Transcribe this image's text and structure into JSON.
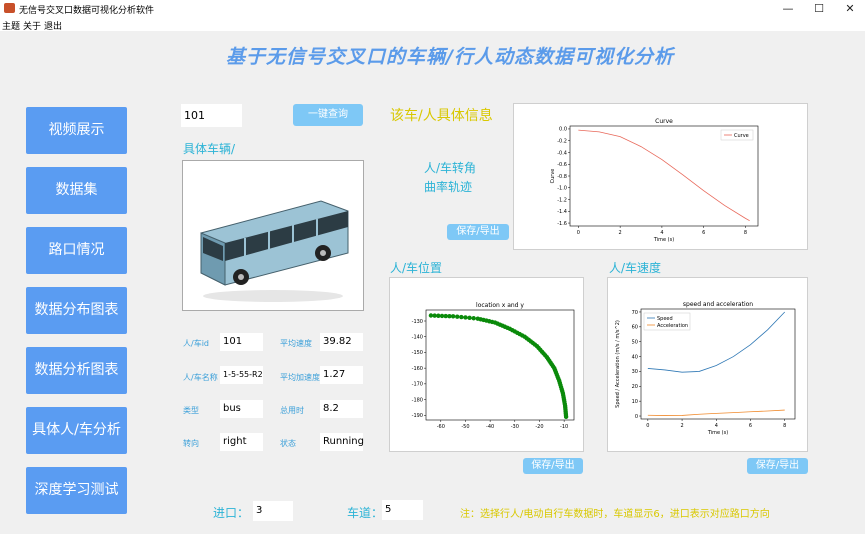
{
  "window": {
    "title": "无信号交叉口数据可视化分析软件",
    "min": "—",
    "max": "☐",
    "close": "✕"
  },
  "menu": [
    "主题",
    "关于",
    "退出"
  ],
  "header": {
    "title": "基于无信号交叉口的车辆/行人动态数据可视化分析"
  },
  "nav": [
    "视频展示",
    "数据集",
    "路口情况",
    "数据分布图表",
    "数据分析图表",
    "具体人/车分析",
    "深度学习测试"
  ],
  "search": {
    "value": "101",
    "button": "一键查询"
  },
  "vehicle": {
    "section_title": "具体车辆/",
    "fields": [
      {
        "label": "人/车id",
        "value": "101"
      },
      {
        "label": "平均速度",
        "value": "39.82"
      },
      {
        "label": "人/车名称",
        "value": "1-5-55-R2"
      },
      {
        "label": "平均加速度",
        "value": "1.27"
      },
      {
        "label": "类型",
        "value": "bus"
      },
      {
        "label": "总用时",
        "value": "8.2"
      },
      {
        "label": "转向",
        "value": "right"
      },
      {
        "label": "状态",
        "value": "Running"
      }
    ]
  },
  "info": {
    "title": "该车/人具体信息",
    "curve_label_1": "人/车转角",
    "curve_label_2": "曲率轨迹",
    "export": "保存/导出"
  },
  "position": {
    "title": "人/车位置",
    "export": "保存/导出"
  },
  "speed": {
    "title": "人/车速度",
    "export": "保存/导出"
  },
  "bottom": {
    "entry_label": "进口：",
    "entry_value": "3",
    "lane_label": "车道：",
    "lane_value": "5",
    "note": "注：选择行人/电动自行车数据时，车道显示6，进口表示对应路口方向"
  },
  "chart_data": [
    {
      "type": "line",
      "title": "Curve",
      "xlabel": "Time (s)",
      "ylabel": "Curve",
      "legend": [
        "Curve"
      ],
      "xlim": [
        -0.4,
        8.6
      ],
      "ylim": [
        -1.65,
        0.05
      ],
      "xticks": [
        0,
        2,
        4,
        6,
        8
      ],
      "yticks": [
        0.0,
        -0.2,
        -0.4,
        -0.6,
        -0.8,
        -1.0,
        -1.2,
        -1.4,
        -1.6
      ],
      "series": [
        {
          "name": "Curve",
          "color": "#e8685a",
          "x": [
            0,
            1,
            2,
            3,
            4,
            5,
            6,
            7,
            8,
            8.2
          ],
          "y": [
            -0.02,
            -0.05,
            -0.13,
            -0.3,
            -0.52,
            -0.78,
            -1.05,
            -1.3,
            -1.52,
            -1.56
          ]
        }
      ]
    },
    {
      "type": "scatter",
      "title": "location x and y",
      "xlabel": "",
      "ylabel": "",
      "xlim": [
        -66,
        -6
      ],
      "ylim": [
        -193,
        -123
      ],
      "xticks": [
        -60,
        -50,
        -40,
        -30,
        -20,
        -10
      ],
      "yticks": [
        -130,
        -140,
        -150,
        -160,
        -170,
        -180,
        -190
      ],
      "series": [
        {
          "name": "location",
          "color": "#0a8a0a",
          "x": [
            -64,
            -55,
            -45,
            -38,
            -32,
            -26,
            -21,
            -17,
            -14,
            -12,
            -10.5,
            -9.6,
            -9.2
          ],
          "y": [
            -126.5,
            -127,
            -128.5,
            -131,
            -135,
            -140,
            -146,
            -153,
            -160,
            -168,
            -176,
            -184,
            -191
          ]
        }
      ]
    },
    {
      "type": "line",
      "title": "speed and acceleration",
      "xlabel": "Time (s)",
      "ylabel": "Speed / Acceleration (m/s / m/s^2)",
      "legend": [
        "Speed",
        "Acceleration"
      ],
      "xlim": [
        -0.4,
        8.6
      ],
      "ylim": [
        -2,
        72
      ],
      "xticks": [
        0,
        2,
        4,
        6,
        8
      ],
      "yticks": [
        0,
        10,
        20,
        30,
        40,
        50,
        60,
        70
      ],
      "series": [
        {
          "name": "Speed",
          "color": "#2f78b5",
          "x": [
            0,
            1,
            2,
            3,
            4,
            5,
            6,
            7,
            8
          ],
          "y": [
            32,
            31,
            29.5,
            30,
            34,
            40,
            48,
            58,
            70
          ]
        },
        {
          "name": "Acceleration",
          "color": "#f08a2c",
          "x": [
            0,
            1,
            2,
            3,
            4,
            5,
            6,
            7,
            8
          ],
          "y": [
            0.5,
            0.3,
            0.4,
            1.2,
            1.8,
            2.3,
            2.9,
            3.4,
            4.0
          ]
        }
      ]
    }
  ]
}
